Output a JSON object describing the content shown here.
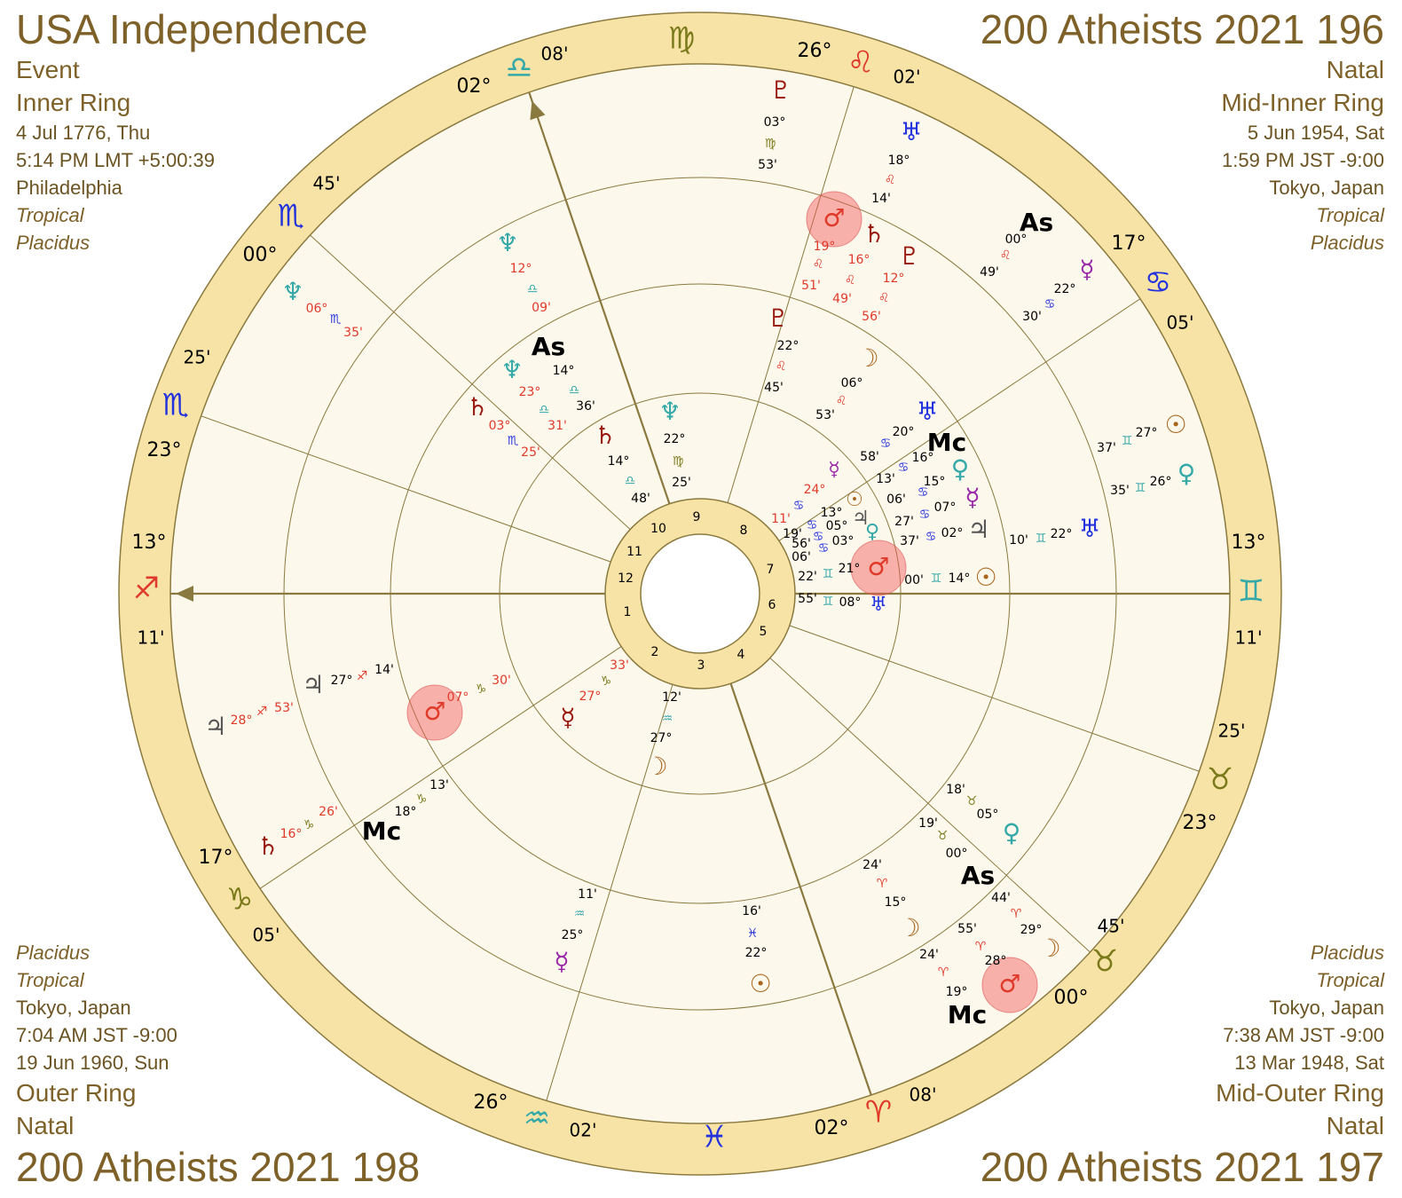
{
  "corners": {
    "top_left": {
      "title": "USA Independence",
      "lines": [
        "Event",
        "Inner Ring",
        "4 Jul 1776, Thu",
        "5:14 PM LMT +5:00:39",
        "Philadelphia",
        "Tropical",
        "Placidus"
      ]
    },
    "top_right": {
      "title": "200 Atheists 2021 196",
      "lines": [
        "Natal",
        "Mid-Inner Ring",
        "5 Jun 1954, Sat",
        "1:59 PM JST -9:00",
        "Tokyo, Japan",
        "Tropical",
        "Placidus"
      ]
    },
    "bottom_left": {
      "title": "200 Atheists 2021 198",
      "lines": [
        "Placidus",
        "Tropical",
        "Tokyo, Japan",
        "7:04 AM JST -9:00",
        "19 Jun 1960, Sun",
        "Outer Ring",
        "Natal"
      ]
    },
    "bottom_right": {
      "title": "200 Atheists 2021 197",
      "lines": [
        "Placidus",
        "Tropical",
        "Tokyo, Japan",
        "7:38 AM JST -9:00",
        "13 Mar 1948, Sat",
        "Mid-Outer Ring",
        "Natal"
      ]
    }
  },
  "zodiac_band": [
    "08'",
    "♍",
    "26°",
    "♌",
    "02'",
    "17°",
    "♋",
    "05'",
    "13°",
    "♊",
    "11'",
    "25'",
    "♉",
    "23°",
    "45'",
    "♉",
    "00°",
    "08'",
    "♈",
    "02°",
    "♓",
    "02'",
    "♒",
    "26°",
    "05'",
    "♑",
    "17°",
    "11'",
    "♐",
    "13°",
    "23°",
    "♏",
    "25'",
    "00°",
    "♏",
    "45'",
    "02°",
    "♎"
  ],
  "houses": [
    9,
    8,
    7,
    6,
    5,
    4,
    3,
    2,
    1,
    12,
    11,
    10
  ],
  "outer_ring": [
    "♇",
    "03°",
    "♍",
    "53'",
    "♅",
    "18°",
    "♌",
    "14'",
    "As",
    "00°",
    "♌",
    "49'",
    "☿",
    "22°",
    "♋",
    "30'",
    "☉",
    "27°",
    "♊",
    "37'",
    "♀",
    "26°",
    "♊",
    "35'",
    "♅",
    "22°",
    "♊",
    "10'",
    "♀",
    "05°",
    "♉",
    "18'",
    "☽",
    "29°",
    "♈",
    "44'",
    "♂",
    "28°",
    "♈",
    "55'",
    "Mc",
    "19°",
    "♈",
    "24'",
    "♃",
    "28°",
    "♐",
    "53'",
    "♄",
    "16°",
    "♑",
    "26'",
    "♆",
    "06°",
    "♏",
    "35'"
  ],
  "mid_outer_ring": [
    "♂",
    "19°",
    "♌",
    "51'",
    "♄",
    "16°",
    "♌",
    "49'",
    "♇",
    "12°",
    "♌",
    "56'",
    "♆",
    "12°",
    "♎",
    "09'",
    "♆",
    "23°",
    "♎",
    "31'",
    "♄",
    "03°",
    "♏",
    "25'",
    "♃",
    "27°",
    "♐",
    "14'",
    "♂",
    "07°",
    "♑",
    "30'",
    "Mc",
    "18°",
    "♑",
    "13'",
    "☽",
    "15°",
    "♈",
    "24'",
    "As",
    "00°",
    "♉",
    "19'",
    "☿",
    "25°",
    "♒",
    "11'",
    "☉",
    "22°",
    "♓",
    "16'"
  ],
  "mid_inner_ring": [
    "♇",
    "22°",
    "♌",
    "45'",
    "☽",
    "06°",
    "♌",
    "53'",
    "As",
    "14°",
    "♎",
    "36'",
    "♄",
    "14°",
    "♎",
    "48'",
    "☿",
    "27°",
    "♑",
    "33'",
    "♅",
    "20°",
    "♋",
    "58'",
    "Mc",
    "16°",
    "♋",
    "13'",
    "♀",
    "15°",
    "♋",
    "06'",
    "☿",
    "07°",
    "♋",
    "27'",
    "♃",
    "02°",
    "♋",
    "37'",
    "☉",
    "14°",
    "♊",
    "00'"
  ],
  "inner_ring": [
    "♆",
    "22°",
    "♍",
    "25'",
    "♂",
    "21°",
    "♊",
    "22'",
    "♅",
    "08°",
    "♊",
    "55'",
    "☿",
    "24°",
    "♋",
    "11'",
    "☉",
    "13°",
    "♋",
    "19'",
    "♃",
    "05°",
    "♋",
    "56'",
    "♀",
    "03°",
    "♋",
    "06'",
    "☽",
    "27°",
    "♒",
    "12'"
  ]
}
